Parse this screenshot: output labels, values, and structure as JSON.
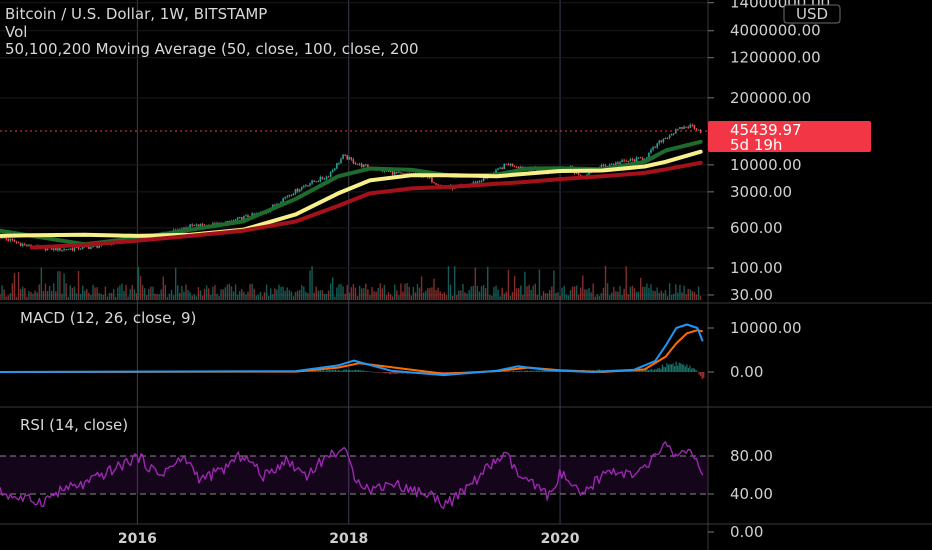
{
  "header": {
    "title": "Bitcoin / U.S. Dollar, 1W, BITSTAMP",
    "vol_label": "Vol",
    "ma_label": "50,100,200 Moving Average (50, close, 100, close, 200"
  },
  "price_axis": {
    "currency": "USD",
    "ticks": [
      {
        "label": "14000000.00",
        "value": 14000000
      },
      {
        "label": "4000000.00",
        "value": 4000000
      },
      {
        "label": "1200000.00",
        "value": 1200000
      },
      {
        "label": "200000.00",
        "value": 200000
      },
      {
        "label": "10000.00",
        "value": 10000
      },
      {
        "label": "3000.00",
        "value": 3000
      },
      {
        "label": "600.00",
        "value": 600
      },
      {
        "label": "100.00",
        "value": 100
      },
      {
        "label": "30.00",
        "value": 30
      }
    ],
    "last_price": "45439.97",
    "countdown": "5d 19h"
  },
  "macd_panel": {
    "label": "MACD (12, 26, close, 9)",
    "ticks": [
      {
        "label": "10000.00",
        "value": 10000
      },
      {
        "label": "0.00",
        "value": 0
      }
    ]
  },
  "rsi_panel": {
    "label": "RSI (14, close)",
    "ticks": [
      {
        "label": "80.00",
        "value": 80
      },
      {
        "label": "40.00",
        "value": 40
      },
      {
        "label": "0.00",
        "value": 0
      }
    ],
    "bands": [
      70,
      30
    ]
  },
  "x_axis": {
    "ticks": [
      {
        "label": "2016",
        "value": 2016
      },
      {
        "label": "2018",
        "value": 2018
      },
      {
        "label": "2020",
        "value": 2020
      }
    ]
  },
  "colors": {
    "background": "#000000",
    "up": "#26a69a",
    "down": "#ef5350",
    "ma50": "#1e6b2e",
    "ma100": "#f7f08a",
    "ma200": "#a3121b",
    "macd": "#2196f3",
    "signal": "#ff6d00",
    "rsi": "#9c27b0",
    "price_label_bg": "#f23645"
  },
  "chart_data": [
    {
      "type": "line",
      "title": "Bitcoin / U.S. Dollar, 1W, BITSTAMP",
      "yscale": "log",
      "xlim": [
        2014.7,
        2021.4
      ],
      "series": [
        {
          "name": "",
          "kind": "price-candles",
          "x": [
            2014.7,
            2015.0,
            2015.3,
            2015.6,
            2015.9,
            2016.2,
            2016.5,
            2016.8,
            2017.0,
            2017.2,
            2017.4,
            2017.6,
            2017.8,
            2017.95,
            2018.1,
            2018.3,
            2018.5,
            2018.7,
            2018.9,
            2019.1,
            2019.3,
            2019.5,
            2019.7,
            2019.9,
            2020.1,
            2020.2,
            2020.4,
            2020.6,
            2020.8,
            2020.95,
            2021.05,
            2021.15,
            2021.25,
            2021.33
          ],
          "y": [
            400,
            250,
            230,
            260,
            380,
            420,
            650,
            700,
            950,
            1200,
            2400,
            4200,
            6000,
            15000,
            10000,
            8000,
            6500,
            6500,
            3600,
            3800,
            5500,
            10500,
            8500,
            7300,
            9000,
            5500,
            9500,
            11500,
            13500,
            29000,
            40000,
            52000,
            58000,
            45440
          ]
        },
        {
          "name": "50",
          "kind": "moving-average",
          "x": [
            2014.7,
            2015.0,
            2015.5,
            2016.0,
            2016.5,
            2017.0,
            2017.5,
            2017.9,
            2018.2,
            2018.6,
            2019.0,
            2019.4,
            2019.7,
            2020.0,
            2020.4,
            2020.8,
            2021.0,
            2021.33
          ],
          "y": [
            530,
            420,
            290,
            380,
            550,
            800,
            2200,
            6000,
            8500,
            8000,
            6000,
            6500,
            8500,
            8600,
            8200,
            11500,
            19000,
            28000
          ]
        },
        {
          "name": "100",
          "kind": "moving-average",
          "x": [
            2014.7,
            2015.0,
            2015.5,
            2016.0,
            2016.5,
            2017.0,
            2017.5,
            2017.9,
            2018.2,
            2018.6,
            2019.0,
            2019.4,
            2019.7,
            2020.0,
            2020.4,
            2020.8,
            2021.0,
            2021.33
          ],
          "y": [
            420,
            430,
            440,
            420,
            440,
            550,
            1100,
            2800,
            5000,
            6300,
            6300,
            6000,
            6800,
            7600,
            7800,
            9300,
            11500,
            18000
          ]
        },
        {
          "name": "200",
          "kind": "moving-average",
          "x": [
            2015.0,
            2015.5,
            2016.0,
            2016.5,
            2017.0,
            2017.5,
            2017.9,
            2018.2,
            2018.6,
            2019.0,
            2019.4,
            2019.7,
            2020.0,
            2020.4,
            2020.8,
            2021.0,
            2021.33
          ],
          "y": [
            250,
            280,
            340,
            420,
            530,
            800,
            1600,
            2800,
            3500,
            3800,
            4300,
            4700,
            5300,
            6000,
            7000,
            8200,
            11000
          ]
        }
      ]
    },
    {
      "type": "line",
      "title": "MACD (12, 26, close, 9)",
      "xlim": [
        2014.7,
        2021.4
      ],
      "series": [
        {
          "name": "MACD",
          "x": [
            2014.7,
            2017.5,
            2017.9,
            2018.05,
            2018.4,
            2018.9,
            2019.4,
            2019.6,
            2019.9,
            2020.3,
            2020.7,
            2020.9,
            2021.0,
            2021.1,
            2021.2,
            2021.3,
            2021.35
          ],
          "y": [
            0,
            200,
            1500,
            2600,
            300,
            -700,
            300,
            1300,
            400,
            0,
            500,
            2500,
            6000,
            10000,
            10800,
            10000,
            7000
          ]
        },
        {
          "name": "Signal",
          "x": [
            2014.7,
            2017.5,
            2017.9,
            2018.1,
            2018.5,
            2018.9,
            2019.4,
            2019.7,
            2020.0,
            2020.4,
            2020.8,
            2021.0,
            2021.1,
            2021.2,
            2021.3,
            2021.35
          ],
          "y": [
            0,
            100,
            1000,
            2000,
            800,
            -400,
            200,
            1000,
            400,
            0,
            600,
            3500,
            6500,
            8800,
            9500,
            9200
          ]
        },
        {
          "name": "Histogram",
          "x": [
            2017.9,
            2018.05,
            2018.4,
            2019.6,
            2020.9,
            2021.0,
            2021.1,
            2021.2,
            2021.3,
            2021.35
          ],
          "y": [
            500,
            700,
            -500,
            300,
            700,
            2000,
            2500,
            1800,
            300,
            -2300
          ]
        }
      ]
    },
    {
      "type": "line",
      "title": "RSI (14, close)",
      "xlim": [
        2014.7,
        2021.4
      ],
      "ylim": [
        0,
        100
      ],
      "series": [
        {
          "name": "RSI",
          "x": [
            2014.7,
            2014.9,
            2015.1,
            2015.3,
            2015.5,
            2015.7,
            2015.85,
            2016.0,
            2016.2,
            2016.45,
            2016.6,
            2016.8,
            2017.0,
            2017.2,
            2017.4,
            2017.6,
            2017.8,
            2017.95,
            2018.05,
            2018.2,
            2018.4,
            2018.6,
            2018.8,
            2018.9,
            2019.0,
            2019.2,
            2019.4,
            2019.5,
            2019.6,
            2019.8,
            2019.9,
            2020.0,
            2020.15,
            2020.2,
            2020.35,
            2020.5,
            2020.7,
            2020.85,
            2020.95,
            2021.0,
            2021.1,
            2021.2,
            2021.3,
            2021.35
          ],
          "y": [
            42,
            35,
            32,
            45,
            50,
            62,
            70,
            80,
            60,
            78,
            55,
            65,
            82,
            58,
            76,
            60,
            80,
            88,
            60,
            44,
            52,
            44,
            38,
            30,
            34,
            55,
            76,
            80,
            60,
            45,
            38,
            62,
            44,
            36,
            55,
            66,
            58,
            72,
            88,
            92,
            80,
            88,
            70,
            55
          ]
        }
      ]
    }
  ]
}
